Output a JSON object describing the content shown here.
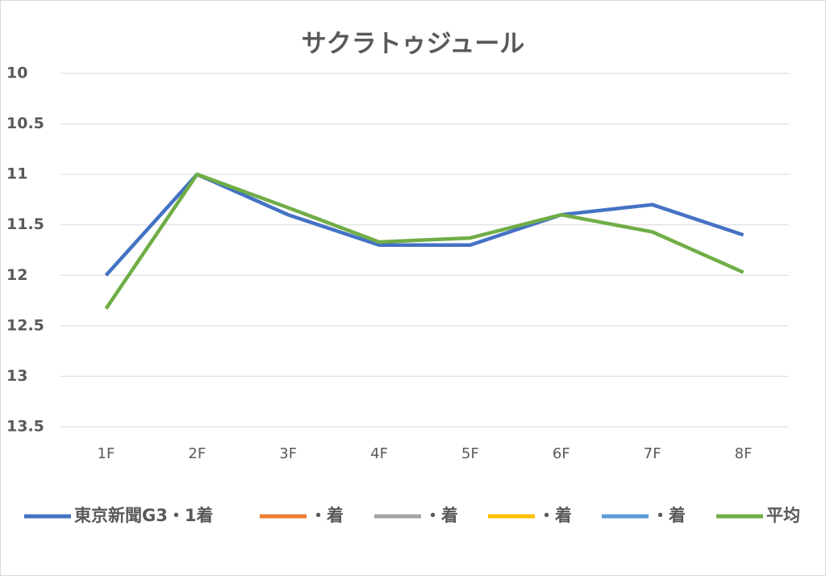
{
  "chart_data": {
    "type": "line",
    "title": "サクラトゥジュール",
    "categories": [
      "1F",
      "2F",
      "3F",
      "4F",
      "5F",
      "6F",
      "7F",
      "8F"
    ],
    "series": [
      {
        "name": "東京新聞G3・1着",
        "color": "#4472c4",
        "values": [
          12.0,
          11.0,
          11.4,
          11.7,
          11.7,
          11.4,
          11.3,
          11.6
        ]
      },
      {
        "name": "・着",
        "color": "#ed7d31",
        "values": [
          null,
          null,
          null,
          null,
          null,
          null,
          null,
          null
        ]
      },
      {
        "name": "・着",
        "color": "#a5a5a5",
        "values": [
          null,
          null,
          null,
          null,
          null,
          null,
          null,
          null
        ]
      },
      {
        "name": "・着",
        "color": "#ffc000",
        "values": [
          null,
          null,
          null,
          null,
          null,
          null,
          null,
          null
        ]
      },
      {
        "name": "・着",
        "color": "#5b9bd5",
        "values": [
          null,
          null,
          null,
          null,
          null,
          null,
          null,
          null
        ]
      },
      {
        "name": "平均",
        "color": "#70ad47",
        "values": [
          12.33,
          11.0,
          11.33,
          11.67,
          11.63,
          11.4,
          11.57,
          11.97
        ]
      }
    ],
    "ylim": [
      10,
      13.5
    ],
    "yticks": [
      10,
      10.5,
      11,
      11.5,
      12,
      12.5,
      13,
      13.5
    ],
    "y_reversed": true,
    "grid": true,
    "legend": "bottom"
  }
}
